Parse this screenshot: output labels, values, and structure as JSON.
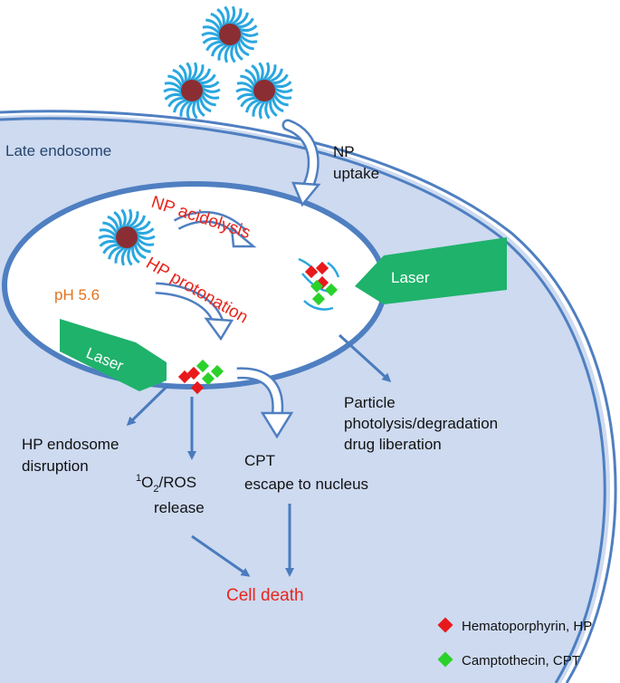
{
  "labels": {
    "late_endosome": "Late endosome",
    "np_uptake_line1": "NP",
    "np_uptake_line2": "uptake",
    "np_acidolysis": "NP acidolysis",
    "hp_protonation": "HP protonation",
    "ph": "pH 5.6",
    "laser_right": "Laser",
    "laser_left": "Laser",
    "particle_line1": "Particle",
    "particle_line2": "photolysis/degradation",
    "particle_line3": "drug liberation",
    "hp_disruption_line1": "HP endosome",
    "hp_disruption_line2": "disruption",
    "ros_sup": "1",
    "ros_o": "O",
    "ros_sub": "2",
    "ros_rest": "/ROS",
    "ros_line2": "release",
    "cpt_line1": "CPT",
    "cpt_line2": "escape to nucleus",
    "cell_death": "Cell death"
  },
  "legend": [
    {
      "label": "Hematoporphyrin, HP",
      "color": "#e8191b"
    },
    {
      "label": "Camptothecin, CPT",
      "color": "#2bd12b"
    }
  ],
  "colors": {
    "cell_fill": "#cddaf0",
    "membrane": "#4f7fc1",
    "arrow": "#4a7bbd",
    "laser": "#1fb26b",
    "np_core": "#8b2e33",
    "np_corona": "#2aa7e0"
  }
}
